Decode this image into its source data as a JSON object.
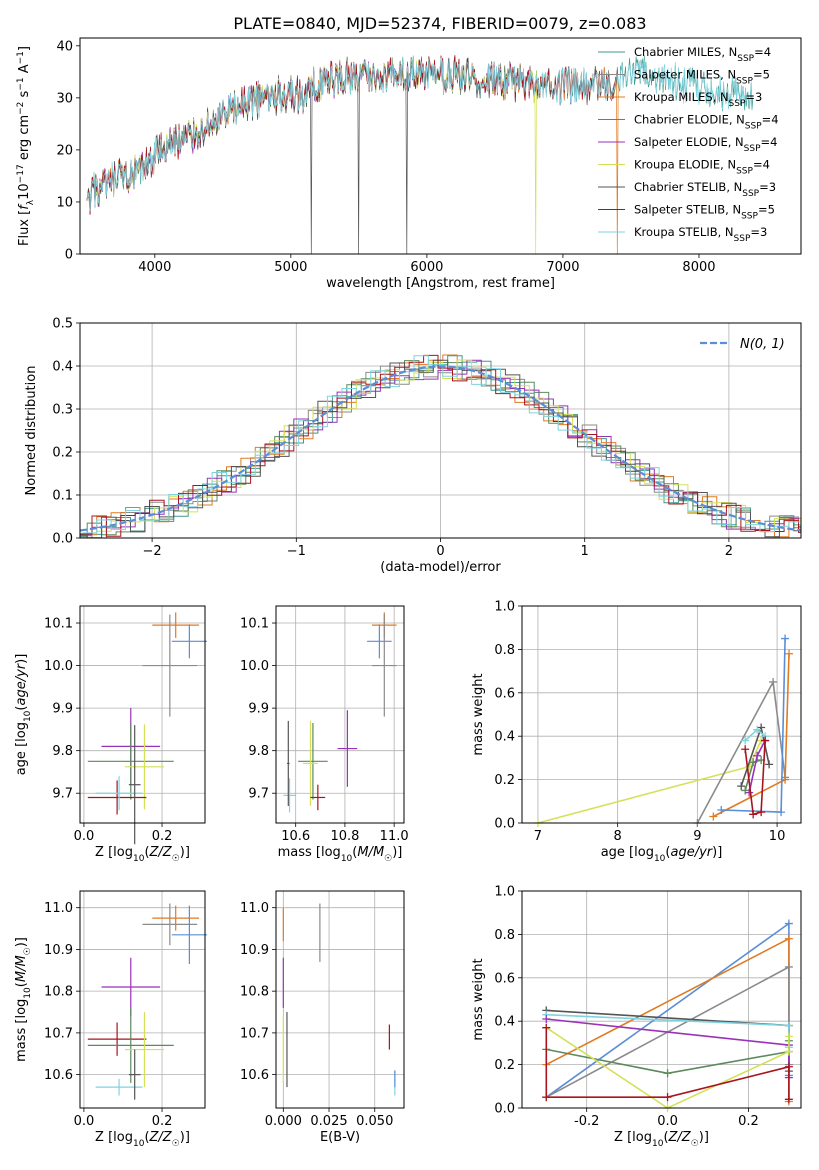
{
  "figure_title": "PLATE=0840, MJD=52374, FIBERID=0079, z=0.083",
  "colors": {
    "chabrier_miles": "#3d9a8e",
    "salpeter_miles": "#8b8b8b",
    "kroupa_miles": "#e07b24",
    "chabrier_elodie": "#5c8a5c",
    "salpeter_elodie": "#9932b8",
    "kroupa_elodie": "#d4e157",
    "chabrier_stelib": "#555555",
    "salpeter_stelib": "#a8141e",
    "kroupa_stelib": "#7fd3e0",
    "normal": "#5b8ed6"
  },
  "chart_data": [
    {
      "id": "spectrum",
      "type": "line",
      "xlabel": "wavelength [Angstrom, rest frame]",
      "ylabel": "Flux [f_λ10^-17 erg cm^-2 s^-1 A^-1]",
      "xlim": [
        3450,
        8750
      ],
      "ylim": [
        0,
        41.5
      ],
      "xticks": [
        4000,
        5000,
        6000,
        7000,
        8000
      ],
      "yticks": [
        0,
        10,
        20,
        30,
        40
      ],
      "grid": false,
      "legend_position": "right",
      "flux_profile": {
        "x": [
          3500,
          3550,
          3650,
          3700,
          3800,
          3850,
          3900,
          3950,
          4000,
          4100,
          4200,
          4300,
          4400,
          4500,
          4600,
          4800,
          5000,
          5100,
          5200,
          5400,
          5600,
          5800,
          6000,
          6200,
          6400,
          6600,
          6800,
          7000,
          7200,
          7400,
          7600,
          7800,
          8000,
          8200,
          8400
        ],
        "y": [
          9,
          12,
          13,
          14,
          15,
          15,
          16,
          17,
          19,
          21,
          22,
          23,
          25,
          26,
          28,
          30,
          31,
          30,
          33,
          34,
          34,
          35,
          34,
          34.5,
          33.5,
          33,
          33,
          32.5,
          32,
          33,
          35,
          33.5,
          32,
          31,
          31
        ]
      },
      "series": [
        {
          "label_base": "Chabrier MILES",
          "label_sub": "SSP",
          "label_tail": "=4",
          "color_key": "chabrier_miles",
          "xmax": 8400,
          "dips": []
        },
        {
          "label_base": "Salpeter MILES",
          "label_sub": "SSP",
          "label_tail": "=5",
          "color_key": "salpeter_miles",
          "xmax": 7400,
          "dips": []
        },
        {
          "label_base": "Kroupa MILES",
          "label_sub": "SSP",
          "label_tail": "=3",
          "color_key": "kroupa_miles",
          "xmax": 7410,
          "dips": [
            7400
          ]
        },
        {
          "label_base": "Chabrier ELODIE",
          "label_sub": "SSP",
          "label_tail": "=4",
          "color_key": "chabrier_elodie",
          "xmax": 6800,
          "dips": []
        },
        {
          "label_base": "Salpeter ELODIE",
          "label_sub": "SSP",
          "label_tail": "=4",
          "color_key": "salpeter_elodie",
          "xmax": 6800,
          "dips": []
        },
        {
          "label_base": "Kroupa ELODIE",
          "label_sub": "SSP",
          "label_tail": "=4",
          "color_key": "kroupa_elodie",
          "xmax": 6810,
          "dips": [
            6800
          ]
        },
        {
          "label_base": "Chabrier STELIB",
          "label_sub": "SSP",
          "label_tail": "=3",
          "color_key": "chabrier_stelib",
          "xmax": 7400,
          "dips": [
            5150,
            5500,
            5850
          ]
        },
        {
          "label_base": "Salpeter STELIB",
          "label_sub": "SSP",
          "label_tail": "=5",
          "color_key": "salpeter_stelib",
          "xmax": 7400,
          "dips": []
        },
        {
          "label_base": "Kroupa STELIB",
          "label_sub": "SSP",
          "label_tail": "=3",
          "color_key": "kroupa_stelib",
          "xmax": 8400,
          "dips": []
        }
      ]
    },
    {
      "id": "residuals",
      "type": "line",
      "xlabel": "(data-model)/error",
      "ylabel": "Normed distribution",
      "xlim": [
        -2.5,
        2.5
      ],
      "ylim": [
        0,
        0.5
      ],
      "xticks": [
        -2,
        -1,
        0,
        1,
        2
      ],
      "yticks": [
        0.0,
        0.1,
        0.2,
        0.3,
        0.4,
        0.5
      ],
      "grid": true,
      "legend": "N(0, 1)",
      "legend_position": "top-right",
      "bin_width": 0.1,
      "bins_start": -2.55
    },
    {
      "id": "age_vs_z",
      "type": "scatter",
      "xlabel": "Z [log10(Z/Z☉)]",
      "ylabel": "age  [log10(age/yr)]",
      "xlim": [
        -0.01,
        0.31
      ],
      "ylim": [
        9.63,
        10.14
      ],
      "xticks": [
        0.0,
        0.2
      ],
      "yticks": [
        9.7,
        9.8,
        9.9,
        10.0,
        10.1
      ],
      "grid": true,
      "points": [
        {
          "color_key": "kroupa_miles",
          "x": 0.235,
          "y": 10.095,
          "xerr": 0.06,
          "yerr": 0.03
        },
        {
          "color_key": "normal",
          "x": 0.27,
          "y": 10.057,
          "xerr": 0.045,
          "yerr": 0.04
        },
        {
          "color_key": "salpeter_miles",
          "x": 0.22,
          "y": 10.0,
          "xerr": 0.07,
          "yerr": 0.12
        },
        {
          "color_key": "salpeter_elodie",
          "x": 0.12,
          "y": 9.81,
          "xerr": 0.075,
          "yerr": 0.09
        },
        {
          "color_key": "chabrier_elodie",
          "x": 0.12,
          "y": 9.775,
          "xerr": 0.11,
          "yerr": 0.09
        },
        {
          "color_key": "kroupa_elodie",
          "x": 0.155,
          "y": 9.762,
          "xerr": 0.05,
          "yerr": 0.1
        },
        {
          "color_key": "salpeter_stelib",
          "x": 0.085,
          "y": 9.69,
          "xerr": 0.075,
          "yerr": 0.04
        },
        {
          "color_key": "kroupa_stelib",
          "x": 0.09,
          "y": 9.7,
          "xerr": 0.06,
          "yerr": 0.04
        },
        {
          "color_key": "chabrier_stelib",
          "x": 0.13,
          "y": 9.72,
          "xerr": 0.015,
          "yerr": 0.14
        }
      ]
    },
    {
      "id": "age_vs_mass",
      "type": "scatter",
      "xlabel": "mass [log10(M/M☉)]",
      "ylabel": "",
      "xlim": [
        10.52,
        11.04
      ],
      "ylim": [
        9.63,
        10.14
      ],
      "xticks": [
        10.6,
        10.8,
        11.0
      ],
      "yticks": [
        9.7,
        9.8,
        9.9,
        10.0,
        10.1
      ],
      "grid": true,
      "points": [
        {
          "color_key": "kroupa_miles",
          "x": 10.96,
          "y": 10.095,
          "xerr": 0.05,
          "yerr": 0.03
        },
        {
          "color_key": "normal",
          "x": 10.94,
          "y": 10.057,
          "xerr": 0.05,
          "yerr": 0.04
        },
        {
          "color_key": "salpeter_miles",
          "x": 10.96,
          "y": 10.0,
          "xerr": 0.05,
          "yerr": 0.12
        },
        {
          "color_key": "salpeter_elodie",
          "x": 10.81,
          "y": 9.805,
          "xerr": 0.04,
          "yerr": 0.09
        },
        {
          "color_key": "chabrier_elodie",
          "x": 10.67,
          "y": 9.775,
          "xerr": 0.06,
          "yerr": 0.09
        },
        {
          "color_key": "kroupa_elodie",
          "x": 10.66,
          "y": 9.77,
          "xerr": 0.03,
          "yerr": 0.1
        },
        {
          "color_key": "salpeter_stelib",
          "x": 10.69,
          "y": 9.69,
          "xerr": 0.03,
          "yerr": 0.03
        },
        {
          "color_key": "kroupa_stelib",
          "x": 10.575,
          "y": 9.695,
          "xerr": 0.025,
          "yerr": 0.04
        },
        {
          "color_key": "chabrier_stelib",
          "x": 10.57,
          "y": 9.77,
          "xerr": 0.005,
          "yerr": 0.1
        }
      ]
    },
    {
      "id": "weight_vs_age",
      "type": "line",
      "xlabel": "age  [log10(age/yr)]",
      "ylabel": "mass weight",
      "xlim": [
        6.8,
        10.3
      ],
      "ylim": [
        0,
        1
      ],
      "xticks": [
        7,
        8,
        9,
        10
      ],
      "yticks": [
        0.0,
        0.2,
        0.4,
        0.6,
        0.8,
        1.0
      ],
      "grid": true,
      "series": [
        {
          "color_key": "kroupa_elodie",
          "x": [
            7.0,
            9.65,
            9.8
          ],
          "y": [
            0.0,
            0.26,
            0.38
          ]
        },
        {
          "color_key": "salpeter_miles",
          "x": [
            9.0,
            9.95,
            10.1
          ],
          "y": [
            0.0,
            0.65,
            0.21
          ]
        },
        {
          "color_key": "kroupa_miles",
          "x": [
            9.2,
            10.1,
            10.15
          ],
          "y": [
            0.03,
            0.2,
            0.78
          ]
        },
        {
          "color_key": "normal",
          "x": [
            9.3,
            10.05,
            10.1
          ],
          "y": [
            0.06,
            0.05,
            0.85
          ]
        },
        {
          "color_key": "chabrier_stelib",
          "x": [
            9.55,
            9.8,
            9.9
          ],
          "y": [
            0.17,
            0.44,
            0.27
          ]
        },
        {
          "color_key": "kroupa_stelib",
          "x": [
            9.6,
            9.75,
            9.85
          ],
          "y": [
            0.38,
            0.43,
            0.4
          ]
        },
        {
          "color_key": "chabrier_elodie",
          "x": [
            9.6,
            9.7,
            9.8
          ],
          "y": [
            0.15,
            0.28,
            0.29
          ]
        },
        {
          "color_key": "salpeter_elodie",
          "x": [
            9.65,
            9.75,
            9.85
          ],
          "y": [
            0.14,
            0.31,
            0.38
          ]
        },
        {
          "color_key": "salpeter_stelib",
          "x": [
            9.6,
            9.7,
            9.8,
            9.85
          ],
          "y": [
            0.34,
            0.04,
            0.05,
            0.38
          ]
        }
      ]
    },
    {
      "id": "mass_vs_z",
      "type": "scatter",
      "xlabel": "Z [log10(Z/Z☉)]",
      "ylabel": "mass [log10(M/M☉)]",
      "xlim": [
        -0.01,
        0.31
      ],
      "ylim": [
        10.52,
        11.04
      ],
      "xticks": [
        0.0,
        0.2
      ],
      "yticks": [
        10.6,
        10.7,
        10.8,
        10.9,
        11.0
      ],
      "grid": true,
      "points": [
        {
          "color_key": "kroupa_miles",
          "x": 0.235,
          "y": 10.975,
          "xerr": 0.06,
          "yerr": 0.03
        },
        {
          "color_key": "salpeter_miles",
          "x": 0.22,
          "y": 10.96,
          "xerr": 0.07,
          "yerr": 0.05
        },
        {
          "color_key": "normal",
          "x": 0.27,
          "y": 10.935,
          "xerr": 0.045,
          "yerr": 0.07
        },
        {
          "color_key": "salpeter_elodie",
          "x": 0.12,
          "y": 10.81,
          "xerr": 0.075,
          "yerr": 0.07
        },
        {
          "color_key": "salpeter_stelib",
          "x": 0.085,
          "y": 10.685,
          "xerr": 0.075,
          "yerr": 0.04
        },
        {
          "color_key": "chabrier_elodie",
          "x": 0.12,
          "y": 10.67,
          "xerr": 0.11,
          "yerr": 0.09
        },
        {
          "color_key": "kroupa_elodie",
          "x": 0.155,
          "y": 10.66,
          "xerr": 0.05,
          "yerr": 0.09
        },
        {
          "color_key": "kroupa_stelib",
          "x": 0.09,
          "y": 10.57,
          "xerr": 0.06,
          "yerr": 0.02
        },
        {
          "color_key": "chabrier_stelib",
          "x": 0.13,
          "y": 10.6,
          "xerr": 0.015,
          "yerr": 0.06
        }
      ]
    },
    {
      "id": "mass_vs_ebv",
      "type": "scatter",
      "xlabel": "E(B-V)",
      "ylabel": "",
      "xlim": [
        -0.004,
        0.066
      ],
      "ylim": [
        10.52,
        11.04
      ],
      "xticks": [
        0.0,
        0.025,
        0.05
      ],
      "yticks": [
        10.6,
        10.7,
        10.8,
        10.9,
        11.0
      ],
      "grid": true,
      "points": [
        {
          "color_key": "kroupa_miles",
          "x": 0.0,
          "y": 10.96,
          "xerr": 0.0,
          "yerr": 0.04
        },
        {
          "color_key": "salpeter_miles",
          "x": 0.02,
          "y": 10.94,
          "xerr": 0.0,
          "yerr": 0.07
        },
        {
          "color_key": "salpeter_elodie",
          "x": 0.0,
          "y": 10.82,
          "xerr": 0.0,
          "yerr": 0.06
        },
        {
          "color_key": "kroupa_elodie",
          "x": 0.0,
          "y": 10.66,
          "xerr": 0.0,
          "yerr": 0.08
        },
        {
          "color_key": "chabrier_stelib",
          "x": 0.002,
          "y": 10.66,
          "xerr": 0.0,
          "yerr": 0.09
        },
        {
          "color_key": "salpeter_stelib",
          "x": 0.058,
          "y": 10.69,
          "xerr": 0.0,
          "yerr": 0.03
        },
        {
          "color_key": "kroupa_stelib",
          "x": 0.061,
          "y": 10.58,
          "xerr": 0.0,
          "yerr": 0.03
        },
        {
          "color_key": "normal",
          "x": 0.061,
          "y": 10.59,
          "xerr": 0.0,
          "yerr": 0.02
        }
      ]
    },
    {
      "id": "weight_vs_z",
      "type": "line",
      "xlabel": "Z [log10(Z/Z☉)]",
      "ylabel": "mass weight",
      "xlim": [
        -0.36,
        0.33
      ],
      "ylim": [
        0,
        1
      ],
      "xticks": [
        -0.2,
        0.0,
        0.2
      ],
      "yticks": [
        0.0,
        0.2,
        0.4,
        0.6,
        0.8,
        1.0
      ],
      "grid": true,
      "series": [
        {
          "color_key": "normal",
          "x": [
            -0.3,
            0.3,
            0.3
          ],
          "y": [
            0.05,
            0.85,
            0.15
          ]
        },
        {
          "color_key": "kroupa_miles",
          "x": [
            -0.3,
            0.3,
            0.3
          ],
          "y": [
            0.2,
            0.78,
            0.03
          ]
        },
        {
          "color_key": "salpeter_miles",
          "x": [
            -0.3,
            0.3,
            0.3
          ],
          "y": [
            0.05,
            0.65,
            0.2
          ]
        },
        {
          "color_key": "chabrier_stelib",
          "x": [
            -0.3,
            0.3,
            0.3
          ],
          "y": [
            0.45,
            0.38,
            0.17
          ]
        },
        {
          "color_key": "kroupa_stelib",
          "x": [
            -0.3,
            0.3,
            0.3
          ],
          "y": [
            0.43,
            0.38,
            0.28
          ]
        },
        {
          "color_key": "salpeter_elodie",
          "x": [
            -0.3,
            0.3,
            0.3
          ],
          "y": [
            0.41,
            0.29,
            0.14
          ]
        },
        {
          "color_key": "chabrier_elodie",
          "x": [
            -0.3,
            0.0,
            0.3,
            0.3
          ],
          "y": [
            0.27,
            0.16,
            0.26,
            0.31
          ]
        },
        {
          "color_key": "kroupa_elodie",
          "x": [
            -0.3,
            0.0,
            0.3,
            0.3
          ],
          "y": [
            0.37,
            0.0,
            0.26,
            0.33
          ]
        },
        {
          "color_key": "salpeter_stelib",
          "x": [
            -0.3,
            -0.3,
            0.0,
            0.3,
            0.3
          ],
          "y": [
            0.37,
            0.05,
            0.05,
            0.19,
            0.04
          ]
        }
      ]
    }
  ]
}
